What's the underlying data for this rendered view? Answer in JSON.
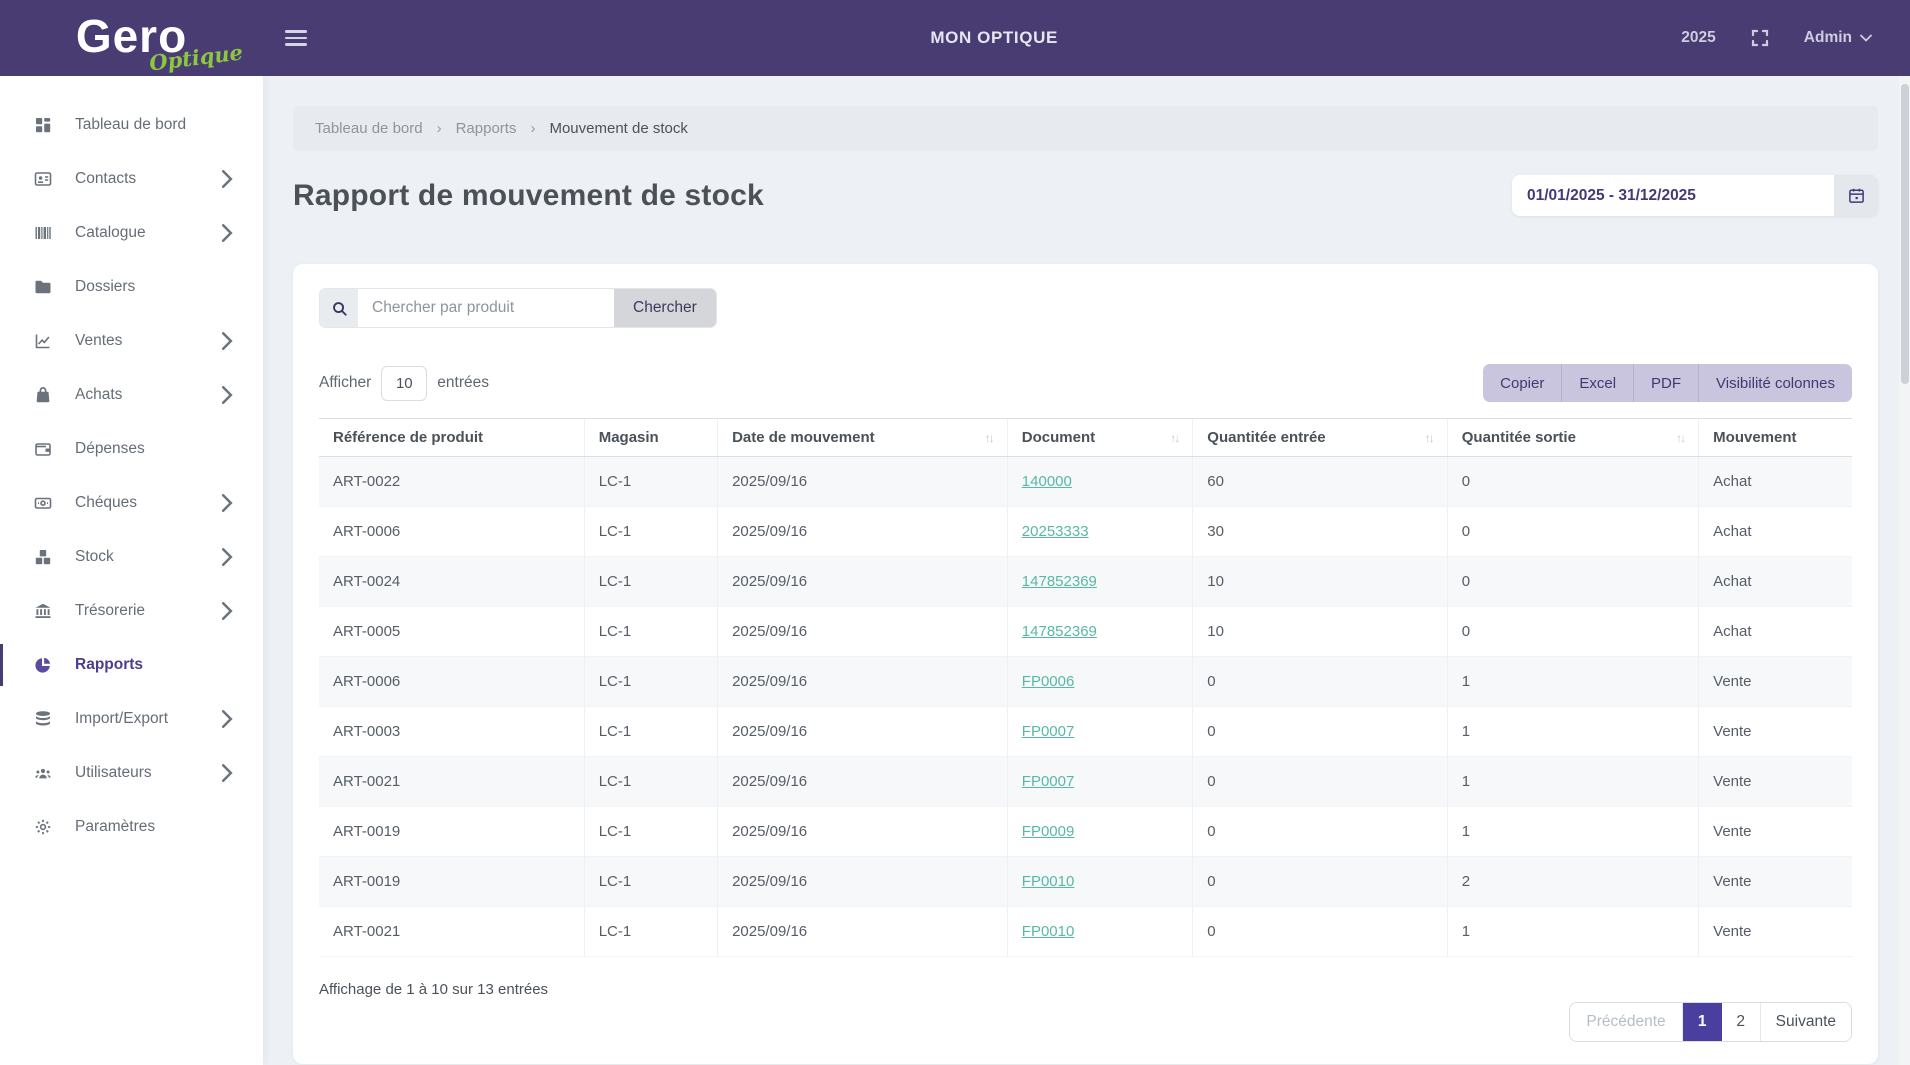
{
  "header": {
    "brand_name": "Gero",
    "brand_sub": "Optique",
    "app_title": "MON OPTIQUE",
    "year": "2025",
    "user_label": "Admin"
  },
  "sidebar": {
    "items": [
      {
        "label": "Tableau de bord",
        "icon": "dashboard-icon",
        "has_submenu": false,
        "active": false
      },
      {
        "label": "Contacts",
        "icon": "contact-card-icon",
        "has_submenu": true,
        "active": false
      },
      {
        "label": "Catalogue",
        "icon": "barcode-icon",
        "has_submenu": true,
        "active": false
      },
      {
        "label": "Dossiers",
        "icon": "folder-icon",
        "has_submenu": false,
        "active": false
      },
      {
        "label": "Ventes",
        "icon": "chart-line-icon",
        "has_submenu": true,
        "active": false
      },
      {
        "label": "Achats",
        "icon": "shopping-bag-icon",
        "has_submenu": true,
        "active": false
      },
      {
        "label": "Dépenses",
        "icon": "wallet-icon",
        "has_submenu": false,
        "active": false
      },
      {
        "label": "Chéques",
        "icon": "cheque-icon",
        "has_submenu": true,
        "active": false
      },
      {
        "label": "Stock",
        "icon": "boxes-icon",
        "has_submenu": true,
        "active": false
      },
      {
        "label": "Trésorerie",
        "icon": "bank-icon",
        "has_submenu": true,
        "active": false
      },
      {
        "label": "Rapports",
        "icon": "pie-chart-icon",
        "has_submenu": false,
        "active": true
      },
      {
        "label": "Import/Export",
        "icon": "database-icon",
        "has_submenu": true,
        "active": false
      },
      {
        "label": "Utilisateurs",
        "icon": "users-icon",
        "has_submenu": true,
        "active": false
      },
      {
        "label": "Paramètres",
        "icon": "gear-icon",
        "has_submenu": false,
        "active": false
      }
    ]
  },
  "breadcrumb": {
    "items": [
      "Tableau de bord",
      "Rapports",
      "Mouvement de stock"
    ]
  },
  "page": {
    "title": "Rapport de mouvement de stock",
    "date_range": "01/01/2025 - 31/12/2025"
  },
  "toolbar": {
    "search_placeholder": "Chercher par produit",
    "search_button_label": "Chercher",
    "show_label": "Afficher",
    "show_value": "10",
    "entries_label": "entrées",
    "export_buttons": [
      "Copier",
      "Excel",
      "PDF",
      "Visibilité colonnes"
    ]
  },
  "table": {
    "columns": [
      {
        "label": "Référence de produit",
        "sortable": false
      },
      {
        "label": "Magasin",
        "sortable": false
      },
      {
        "label": "Date de mouvement",
        "sortable": true
      },
      {
        "label": "Document",
        "sortable": true
      },
      {
        "label": "Quantitée entrée",
        "sortable": true
      },
      {
        "label": "Quantitée sortie",
        "sortable": true
      },
      {
        "label": "Mouvement",
        "sortable": false
      }
    ],
    "column_keys": [
      "cell-reference",
      "cell-magasin",
      "cell-date",
      "cell-document",
      "cell-qty-in",
      "cell-qty-out",
      "cell-mouvement"
    ],
    "rows": [
      [
        "ART-0022",
        "LC-1",
        "2025/09/16",
        "140000",
        "60",
        "0",
        "Achat"
      ],
      [
        "ART-0006",
        "LC-1",
        "2025/09/16",
        "20253333",
        "30",
        "0",
        "Achat"
      ],
      [
        "ART-0024",
        "LC-1",
        "2025/09/16",
        "147852369",
        "10",
        "0",
        "Achat"
      ],
      [
        "ART-0005",
        "LC-1",
        "2025/09/16",
        "147852369",
        "10",
        "0",
        "Achat"
      ],
      [
        "ART-0006",
        "LC-1",
        "2025/09/16",
        "FP0006",
        "0",
        "1",
        "Vente"
      ],
      [
        "ART-0003",
        "LC-1",
        "2025/09/16",
        "FP0007",
        "0",
        "1",
        "Vente"
      ],
      [
        "ART-0021",
        "LC-1",
        "2025/09/16",
        "FP0007",
        "0",
        "1",
        "Vente"
      ],
      [
        "ART-0019",
        "LC-1",
        "2025/09/16",
        "FP0009",
        "0",
        "1",
        "Vente"
      ],
      [
        "ART-0019",
        "LC-1",
        "2025/09/16",
        "FP0010",
        "0",
        "2",
        "Vente"
      ],
      [
        "ART-0021",
        "LC-1",
        "2025/09/16",
        "FP0010",
        "0",
        "1",
        "Vente"
      ]
    ]
  },
  "footer": {
    "info": "Affichage de 1 à 10 sur 13 entrées",
    "pagination": {
      "prev": "Précédente",
      "page1": "1",
      "page2": "2",
      "next": "Suivante",
      "active_page": "1"
    }
  },
  "colors": {
    "header_bg": "#483c72",
    "brand_green": "#8dc63f",
    "active_purple": "#4a3f9e",
    "export_group_bg": "#c9c5de",
    "link_teal": "#57b9a4",
    "content_bg": "#edf1f5"
  }
}
